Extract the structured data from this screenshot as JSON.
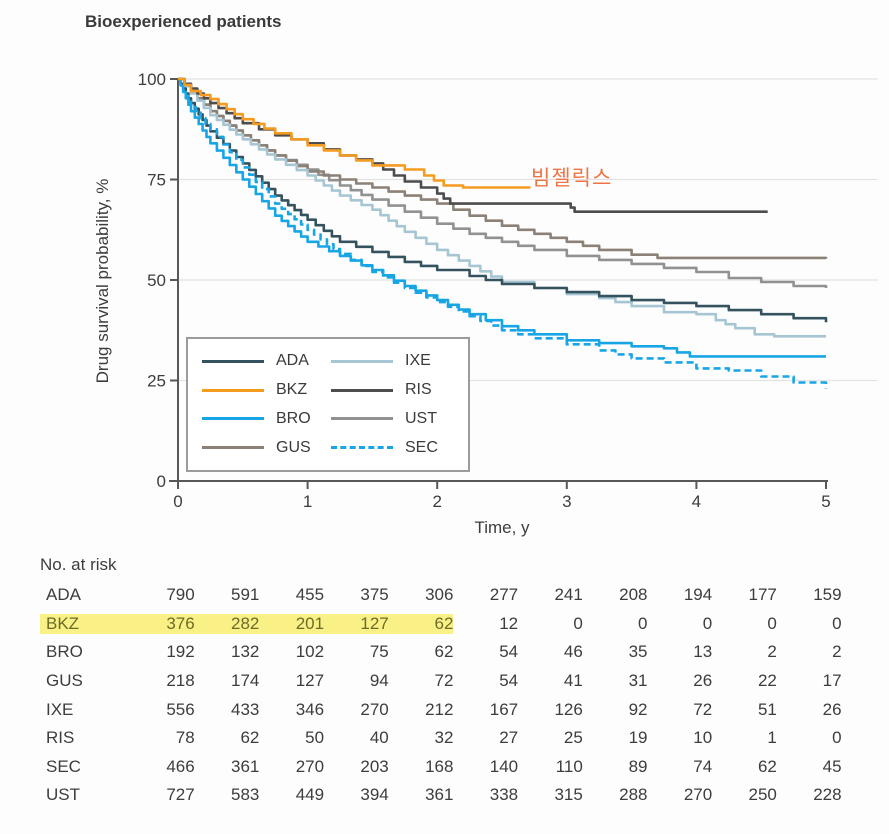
{
  "chart": {
    "title": "Bioexperienced patients",
    "annotation": {
      "text": "빔젤릭스",
      "color": "#ee7444"
    },
    "y_axis": {
      "label": "Drug survival probability, %",
      "ticks": [
        0,
        25,
        50,
        75,
        100
      ],
      "range": [
        0,
        100
      ]
    },
    "x_axis": {
      "label": "Time, y",
      "ticks": [
        0,
        1,
        2,
        3,
        4,
        5
      ],
      "range": [
        0,
        5
      ]
    },
    "colors": {
      "axis": "#58585a",
      "grid": "#e3e3e3",
      "text": "#3d3d3d"
    },
    "legend": [
      {
        "label": "ADA",
        "color": "#35535f",
        "dash": false
      },
      {
        "label": "BKZ",
        "color": "#f59b20",
        "dash": false
      },
      {
        "label": "BRO",
        "color": "#18a5e6",
        "dash": false
      },
      {
        "label": "GUS",
        "color": "#8b8176",
        "dash": false
      },
      {
        "label": "IXE",
        "color": "#a7c6d4",
        "dash": false
      },
      {
        "label": "RIS",
        "color": "#4d4d4f",
        "dash": false
      },
      {
        "label": "UST",
        "color": "#919191",
        "dash": false
      },
      {
        "label": "SEC",
        "color": "#18a5e6",
        "dash": true
      }
    ]
  },
  "chart_data": {
    "type": "line",
    "subtype": "kaplan-meier-step",
    "title": "Bioexperienced patients",
    "xlabel": "Time, y",
    "ylabel": "Drug survival probability, %",
    "xlim": [
      0,
      5
    ],
    "ylim": [
      0,
      100
    ],
    "grid": "horizontal",
    "legend_position": "inside-lower-left",
    "series": [
      {
        "name": "ADA",
        "color": "#35535f",
        "dash": false,
        "points": [
          [
            0,
            100
          ],
          [
            0.1,
            94
          ],
          [
            0.25,
            87
          ],
          [
            0.5,
            79
          ],
          [
            0.75,
            71
          ],
          [
            1,
            65
          ],
          [
            1.25,
            59.5
          ],
          [
            1.5,
            57
          ],
          [
            1.75,
            54.5
          ],
          [
            2,
            52.5
          ],
          [
            2.25,
            51
          ],
          [
            2.5,
            49
          ],
          [
            2.75,
            48
          ],
          [
            3,
            47
          ],
          [
            3.25,
            46
          ],
          [
            3.5,
            45
          ],
          [
            3.75,
            44.3
          ],
          [
            4,
            43.5
          ],
          [
            4.25,
            42.5
          ],
          [
            4.5,
            41.5
          ],
          [
            4.75,
            40.5
          ],
          [
            5,
            39.5
          ]
        ]
      },
      {
        "name": "BKZ",
        "color": "#f59b20",
        "dash": false,
        "points": [
          [
            0,
            100
          ],
          [
            0.1,
            97
          ],
          [
            0.25,
            95
          ],
          [
            0.5,
            90
          ],
          [
            0.75,
            86.5
          ],
          [
            1,
            83.5
          ],
          [
            1.25,
            81
          ],
          [
            1.5,
            78.5
          ],
          [
            1.75,
            77.5
          ],
          [
            1.9,
            76
          ],
          [
            2.05,
            73.5
          ],
          [
            2.2,
            73
          ],
          [
            2.72,
            73
          ]
        ]
      },
      {
        "name": "BRO",
        "color": "#18a5e6",
        "dash": false,
        "points": [
          [
            0,
            100
          ],
          [
            0.1,
            92
          ],
          [
            0.25,
            84
          ],
          [
            0.5,
            75
          ],
          [
            0.75,
            66
          ],
          [
            1,
            59.5
          ],
          [
            1.25,
            56
          ],
          [
            1.5,
            52.5
          ],
          [
            1.75,
            48.5
          ],
          [
            2,
            45
          ],
          [
            2.25,
            41.5
          ],
          [
            2.5,
            38.5
          ],
          [
            2.75,
            36.5
          ],
          [
            3,
            35
          ],
          [
            3.25,
            34.3
          ],
          [
            3.5,
            33.5
          ],
          [
            3.75,
            33
          ],
          [
            3.95,
            31
          ],
          [
            5,
            31
          ]
        ]
      },
      {
        "name": "GUS",
        "color": "#8b8176",
        "dash": false,
        "points": [
          [
            0,
            100
          ],
          [
            0.25,
            92
          ],
          [
            0.5,
            86
          ],
          [
            0.75,
            81
          ],
          [
            1,
            77
          ],
          [
            1.25,
            75
          ],
          [
            1.5,
            73
          ],
          [
            1.75,
            71
          ],
          [
            2,
            69
          ],
          [
            2.25,
            66
          ],
          [
            2.5,
            63.5
          ],
          [
            2.75,
            61.5
          ],
          [
            3,
            59.5
          ],
          [
            3.25,
            57.5
          ],
          [
            3.5,
            56.3
          ],
          [
            3.7,
            55.5
          ],
          [
            5,
            55.3
          ]
        ]
      },
      {
        "name": "IXE",
        "color": "#a7c6d4",
        "dash": false,
        "points": [
          [
            0,
            100
          ],
          [
            0.25,
            91
          ],
          [
            0.5,
            85
          ],
          [
            0.75,
            80
          ],
          [
            1,
            76
          ],
          [
            1.25,
            71
          ],
          [
            1.5,
            67.5
          ],
          [
            1.75,
            62
          ],
          [
            2,
            57.5
          ],
          [
            2.25,
            53.5
          ],
          [
            2.5,
            49.5
          ],
          [
            2.75,
            48
          ],
          [
            3,
            46.5
          ],
          [
            3.25,
            45.5
          ],
          [
            3.5,
            43.5
          ],
          [
            3.75,
            42
          ],
          [
            4,
            41.5
          ],
          [
            4.15,
            40
          ],
          [
            4.3,
            38
          ],
          [
            4.45,
            36.5
          ],
          [
            4.6,
            36
          ],
          [
            5,
            36
          ]
        ]
      },
      {
        "name": "RIS",
        "color": "#4d4d4f",
        "dash": false,
        "points": [
          [
            0,
            100
          ],
          [
            0.25,
            94
          ],
          [
            0.5,
            89
          ],
          [
            0.75,
            86
          ],
          [
            1,
            84
          ],
          [
            1.25,
            81
          ],
          [
            1.5,
            79
          ],
          [
            1.75,
            74.5
          ],
          [
            2,
            71.5
          ],
          [
            2.1,
            69
          ],
          [
            3,
            69
          ],
          [
            3.06,
            67
          ],
          [
            4.55,
            67
          ]
        ]
      },
      {
        "name": "SEC",
        "color": "#18a5e6",
        "dash": true,
        "points": [
          [
            0,
            100
          ],
          [
            0.1,
            93
          ],
          [
            0.25,
            87.5
          ],
          [
            0.5,
            78
          ],
          [
            0.75,
            69
          ],
          [
            1,
            62.5
          ],
          [
            1.25,
            56.5
          ],
          [
            1.5,
            52
          ],
          [
            1.75,
            48
          ],
          [
            2,
            44.5
          ],
          [
            2.25,
            41
          ],
          [
            2.5,
            37.5
          ],
          [
            2.75,
            35.5
          ],
          [
            3,
            34
          ],
          [
            3.25,
            32.5
          ],
          [
            3.5,
            30.5
          ],
          [
            3.75,
            29.5
          ],
          [
            4,
            28
          ],
          [
            4.25,
            27.5
          ],
          [
            4.5,
            26
          ],
          [
            4.75,
            24.5
          ],
          [
            5,
            23
          ]
        ]
      },
      {
        "name": "UST",
        "color": "#919191",
        "dash": false,
        "points": [
          [
            0,
            100
          ],
          [
            0.25,
            92
          ],
          [
            0.5,
            86
          ],
          [
            0.75,
            81
          ],
          [
            1,
            77.5
          ],
          [
            1.25,
            73.5
          ],
          [
            1.5,
            70
          ],
          [
            1.75,
            67
          ],
          [
            2,
            64
          ],
          [
            2.25,
            61.5
          ],
          [
            2.5,
            59.5
          ],
          [
            2.75,
            57.5
          ],
          [
            3,
            56
          ],
          [
            3.25,
            55
          ],
          [
            3.5,
            54
          ],
          [
            3.75,
            53
          ],
          [
            4,
            52
          ],
          [
            4.25,
            50.5
          ],
          [
            4.5,
            49.5
          ],
          [
            4.75,
            48.5
          ],
          [
            5,
            48
          ]
        ]
      }
    ],
    "annotation": {
      "text": "빔젤릭스",
      "attached_to": "BKZ",
      "color": "#ee7444"
    }
  },
  "risk_table": {
    "title": "No. at risk",
    "time_points": [
      0,
      0.5,
      1,
      1.5,
      2,
      2.5,
      3,
      3.5,
      4,
      4.5,
      5
    ],
    "highlight": {
      "row": "BKZ",
      "through_col": 5,
      "bg": "#f9f185",
      "text": "#6e6b28"
    },
    "rows": [
      {
        "label": "ADA",
        "values": [
          "790",
          "591",
          "455",
          "375",
          "306",
          "277",
          "241",
          "208",
          "194",
          "177",
          "159"
        ]
      },
      {
        "label": "BKZ",
        "values": [
          "376",
          "282",
          "201",
          "127",
          "62",
          "12",
          "0",
          "0",
          "0",
          "0",
          "0"
        ]
      },
      {
        "label": "BRO",
        "values": [
          "192",
          "132",
          "102",
          "75",
          "62",
          "54",
          "46",
          "35",
          "13",
          "2",
          "2"
        ]
      },
      {
        "label": "GUS",
        "values": [
          "218",
          "174",
          "127",
          "94",
          "72",
          "54",
          "41",
          "31",
          "26",
          "22",
          "17"
        ]
      },
      {
        "label": "IXE",
        "values": [
          "556",
          "433",
          "346",
          "270",
          "212",
          "167",
          "126",
          "92",
          "72",
          "51",
          "26"
        ]
      },
      {
        "label": "RIS",
        "values": [
          "78",
          "62",
          "50",
          "40",
          "32",
          "27",
          "25",
          "19",
          "10",
          "1",
          "0"
        ]
      },
      {
        "label": "SEC",
        "values": [
          "466",
          "361",
          "270",
          "203",
          "168",
          "140",
          "110",
          "89",
          "74",
          "62",
          "45"
        ]
      },
      {
        "label": "UST",
        "values": [
          "727",
          "583",
          "449",
          "394",
          "361",
          "338",
          "315",
          "288",
          "270",
          "250",
          "228"
        ]
      }
    ]
  }
}
